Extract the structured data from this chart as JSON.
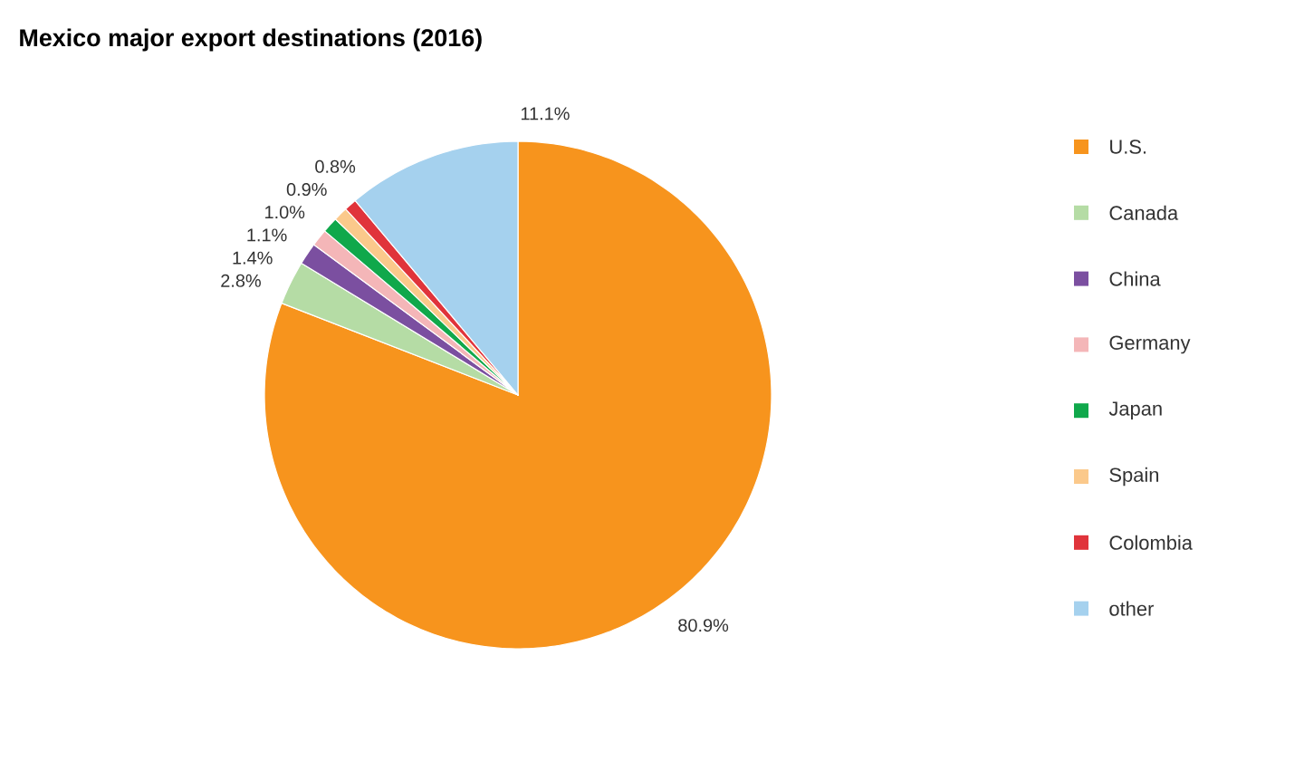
{
  "chart_data": {
    "type": "pie",
    "title": "Mexico major export destinations (2016)",
    "categories": [
      "U.S.",
      "Canada",
      "China",
      "Germany",
      "Japan",
      "Spain",
      "Colombia",
      "other"
    ],
    "values": [
      80.9,
      2.8,
      1.4,
      1.1,
      1.0,
      0.9,
      0.8,
      11.1
    ],
    "value_labels": [
      "80.9%",
      "2.8%",
      "1.4%",
      "1.1%",
      "1.0%",
      "0.9%",
      "0.8%",
      "11.1%"
    ],
    "colors": [
      "#f7941d",
      "#b5dca5",
      "#7b4fa0",
      "#f4b6b8",
      "#10a84b",
      "#fbc98b",
      "#e0343b",
      "#a5d1ee"
    ],
    "legend": "right"
  }
}
